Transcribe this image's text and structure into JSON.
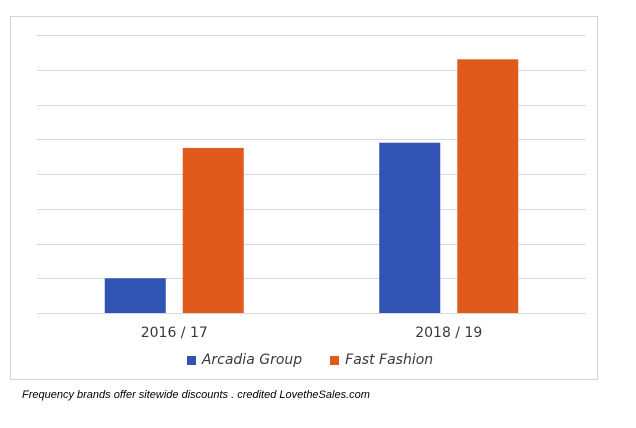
{
  "chart_data": {
    "type": "bar",
    "categories": [
      "2016 / 17",
      "2018 / 19"
    ],
    "series": [
      {
        "name": "Arcadia Group",
        "color": "#3153b4",
        "values": [
          1.0,
          4.9
        ]
      },
      {
        "name": "Fast Fashion",
        "color": "#e05a1c",
        "values": [
          4.75,
          7.3
        ]
      }
    ],
    "ylim": [
      0,
      8
    ],
    "y_gridlines": [
      0,
      1,
      2,
      3,
      4,
      5,
      6,
      7,
      8
    ],
    "y_tick_labels_shown": false,
    "grid": true,
    "legend_position": "bottom",
    "title": "",
    "xlabel": "",
    "ylabel": ""
  },
  "caption": "Frequency brands offer sitewide discounts . credited LovetheSales.com"
}
